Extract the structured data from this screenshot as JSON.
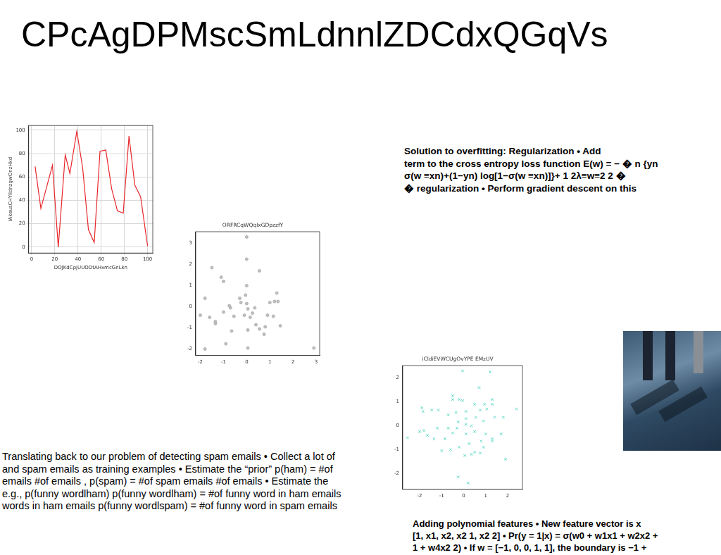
{
  "title": "CPcAgDPMscSmLdnnlZDCdxQGqVs",
  "texts": {
    "regularization": [
      "Solution to overfitting: Regularization • Add",
      "term to the cross entropy loss function E(w) = − � n {yn",
      "σ(w ≡xn)+(1−yn) log[1−σ(w ≡xn)]}+ 1 2λ≡w≡2 2 �",
      "� regularization • Perform gradient descent on this"
    ],
    "spam": [
      "Translating back to our problem of detecting spam emails • Collect a lot of",
      "and spam emails as training examples • Estimate the “prior” p(ham) = #of",
      "emails #of emails , p(spam) = #of spam emails #of emails • Estimate the",
      "e.g., p(funny wordlham) p(funny wordlham) = #of funny word in ham emails",
      "words in ham emails p(funny wordlspam) = #of funny word in spam emails"
    ],
    "polynomial": [
      "Adding polynomial features • New feature vector is x",
      "[1, x1, x2, x2 1, x2 2] • Pr(y = 1|x) = σ(w0 + w1x1 + w2x2 +",
      "1 + w4x2 2) • If w = [−1, 0, 0, 1, 1], the boundary is −1 +"
    ]
  },
  "chart_data": [
    {
      "type": "line",
      "x_label": "DOJKdCpjUUODtAHxmcGnLkn",
      "y_label": "IAkeusCHYIldnzgwOnzHkd",
      "x": [
        3,
        8,
        18,
        23,
        29,
        33,
        39,
        44,
        49,
        54,
        59,
        64,
        69,
        74,
        79,
        84,
        89,
        94,
        100
      ],
      "values": [
        69,
        33,
        70,
        0,
        79,
        63,
        99,
        68,
        15,
        4,
        82,
        83,
        50,
        31,
        29,
        95,
        53,
        43,
        1
      ],
      "color": "#e8262b",
      "xlim": [
        -2.5,
        104.5
      ],
      "ylim": [
        -5,
        104
      ],
      "xticks": [
        0,
        20,
        40,
        60,
        80,
        100
      ],
      "yticks": [
        0,
        20,
        40,
        60,
        80,
        100
      ],
      "grid": true
    },
    {
      "type": "scatter",
      "title": "ORFRCqWQqlxGDpzzfY",
      "marker": "circle",
      "color": "#b0b0b0",
      "x": [
        0,
        0,
        0.55,
        -1.5,
        -1.1,
        -1.0,
        0,
        -0.05,
        -1.8,
        1.3,
        1.35,
        1.2,
        1,
        -0.75,
        -0.7,
        -0.3,
        -0.25,
        0,
        0.05,
        -2,
        -1.6,
        -1.35,
        -1.35,
        -1,
        -0.55,
        -0.1,
        0.15,
        0.25,
        0.35,
        0.4,
        0.05,
        -0.65,
        0.55,
        0.75,
        0.9,
        1.15,
        1.45,
        0.8,
        -0.9,
        -1.8,
        0.05,
        2.9
      ],
      "values": [
        3.3,
        2.25,
        1.7,
        1.85,
        1.4,
        1.2,
        1.0,
        0.55,
        0.4,
        0.65,
        0.25,
        0.25,
        0.2,
        0.05,
        -0.05,
        0.4,
        0.2,
        0.15,
        -0.1,
        -0.4,
        -0.5,
        -0.7,
        -0.8,
        -0.25,
        -0.45,
        -0.4,
        -0.5,
        -0.3,
        -0.05,
        -0.85,
        -1.1,
        -1.15,
        -1.05,
        -1.3,
        -0.4,
        -0.45,
        -0.9,
        -0.95,
        -1.75,
        -2,
        -1.95,
        -1.95
      ],
      "xlim": [
        -2.2,
        3.15
      ],
      "ylim": [
        -2.3,
        3.55
      ],
      "xticks": [
        -2,
        -1,
        0,
        1,
        2,
        3
      ],
      "yticks": [
        -2,
        -1,
        0,
        1,
        2,
        3
      ],
      "grid": false
    },
    {
      "type": "scatter",
      "title": "iCldiEVWCUgOvYPE EMzUV",
      "marker": "x",
      "color": "#5fd8c4",
      "x": [
        -0.05,
        1.2,
        -2.55,
        2.4,
        -1.9,
        -1.85,
        -1.45,
        -1.15,
        -0.5,
        -0.5,
        -0.2,
        -0.05,
        0.7,
        0.5,
        0.95,
        1.3,
        1.3,
        1.05,
        0.75,
        0.1,
        -0.35,
        -0.7,
        0.1,
        0.55,
        0.9,
        1.4,
        1.8,
        -0.25,
        0.1,
        0.35,
        -0.3,
        -0.7,
        -1.2,
        -2,
        -1.65,
        -1.35,
        -0.85,
        -0.5,
        0.1,
        0.5,
        1,
        1.3,
        1.7,
        0.8,
        0.25,
        -0.2,
        -0.6,
        -1,
        0.05,
        0.5,
        0.9,
        1.3,
        0.35,
        0.75,
        1.9,
        -0.25,
        0.2,
        -1.8
      ],
      "values": [
        2.3,
        2.25,
        -0.5,
        0.7,
        0.75,
        0.6,
        0.65,
        0.65,
        1.25,
        1.1,
        1.1,
        1.05,
        1.6,
        0.9,
        0.9,
        1.1,
        0.9,
        0.7,
        0.65,
        0.6,
        0.55,
        0.45,
        0.3,
        0.35,
        0.2,
        0.35,
        0.35,
        0.15,
        0.05,
        0,
        -0.1,
        -0.1,
        -0.1,
        -0.25,
        -0.4,
        -0.55,
        -0.55,
        -0.3,
        -0.35,
        -0.25,
        -0.35,
        -0.55,
        -0.35,
        -0.65,
        -0.75,
        -0.9,
        -1,
        -1.05,
        -1.25,
        -1.1,
        -0.9,
        -0.65,
        -1.2,
        -1.15,
        -1.4,
        -2.15,
        -2.4,
        -0.2
      ],
      "xlim": [
        -2.77,
        2.67
      ],
      "ylim": [
        -2.66,
        2.52
      ],
      "xticks": [
        -2,
        -1,
        0,
        1,
        2
      ],
      "yticks": [
        -2,
        -1,
        0,
        1,
        2
      ],
      "grid": false
    }
  ]
}
